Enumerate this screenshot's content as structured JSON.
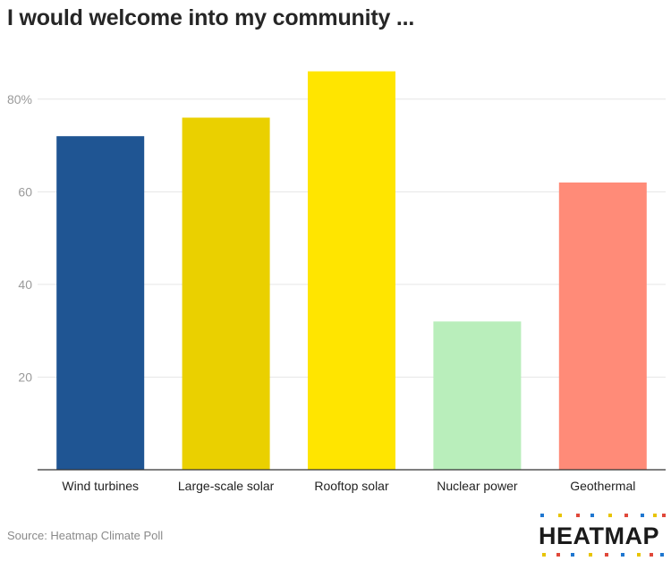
{
  "title": "I would welcome into my community ...",
  "source": "Source: Heatmap Climate Poll",
  "logo": {
    "text": "HEATMAP",
    "dot_colors": [
      "#1f77d0",
      "#e8c400",
      "#e0483a",
      "#1f77d0",
      "#e8c400",
      "#e0483a",
      "#1f77d0",
      "#e8c400",
      "#e0483a"
    ]
  },
  "chart_data": {
    "type": "bar",
    "categories": [
      "Wind turbines",
      "Large-scale solar",
      "Rooftop solar",
      "Nuclear power",
      "Geothermal"
    ],
    "values": [
      72,
      76,
      86,
      32,
      62
    ],
    "colors": [
      "#1f5593",
      "#ead000",
      "#ffe500",
      "#b9eebb",
      "#ff8b78"
    ],
    "ylim": [
      0,
      90
    ],
    "yticks": [
      {
        "value": 20,
        "label": "20"
      },
      {
        "value": 40,
        "label": "40"
      },
      {
        "value": 60,
        "label": "60"
      },
      {
        "value": 80,
        "label": "80%"
      }
    ],
    "grid": true,
    "xlabel": "",
    "ylabel": ""
  }
}
